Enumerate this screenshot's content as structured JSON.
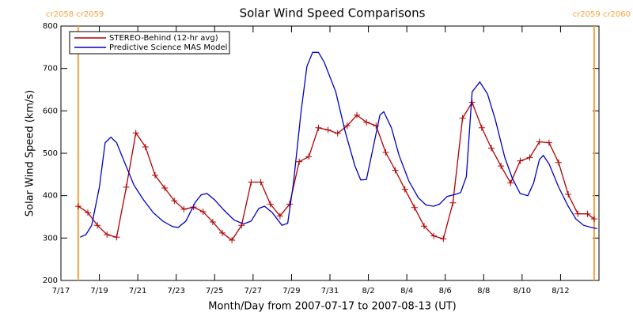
{
  "chart_data": {
    "type": "line",
    "title": "Solar Wind Speed Comparisons",
    "x_label": "Month/Day from 2007-07-17 to 2007-08-13 (UT)",
    "y_label": "Solar Wind Speed (km/s)",
    "xlim": [
      0,
      28
    ],
    "ylim": [
      200,
      800
    ],
    "xticks": [
      {
        "value": 0,
        "label": "7/17"
      },
      {
        "value": 2,
        "label": "7/19"
      },
      {
        "value": 4,
        "label": "7/21"
      },
      {
        "value": 6,
        "label": "7/23"
      },
      {
        "value": 8,
        "label": "7/25"
      },
      {
        "value": 10,
        "label": "7/27"
      },
      {
        "value": 12,
        "label": "7/29"
      },
      {
        "value": 14,
        "label": "7/31"
      },
      {
        "value": 16,
        "label": "8/2"
      },
      {
        "value": 18,
        "label": "8/4"
      },
      {
        "value": 20,
        "label": "8/6"
      },
      {
        "value": 22,
        "label": "8/8"
      },
      {
        "value": 24,
        "label": "8/10"
      },
      {
        "value": 26,
        "label": "8/12"
      }
    ],
    "yticks": [
      200,
      300,
      400,
      500,
      600,
      700,
      800
    ],
    "legend": "upper left",
    "markers": [
      {
        "x": 0.9,
        "label": "cr2058 cr2059",
        "color": "#f7a23a"
      },
      {
        "x": 27.75,
        "label": "cr2059 cr2060",
        "color": "#f7a23a"
      }
    ],
    "series": [
      {
        "name": "STEREO-Behind (12-hr avg)",
        "color": "#b00000",
        "marker": "+",
        "x": [
          0.9,
          1.4,
          1.9,
          2.4,
          2.9,
          3.4,
          3.9,
          4.4,
          4.9,
          5.4,
          5.9,
          6.4,
          6.9,
          7.4,
          7.9,
          8.4,
          8.9,
          9.4,
          9.9,
          10.4,
          10.9,
          11.4,
          11.9,
          12.4,
          12.9,
          13.4,
          13.9,
          14.4,
          14.9,
          15.4,
          15.9,
          16.4,
          16.9,
          17.4,
          17.9,
          18.4,
          18.9,
          19.4,
          19.9,
          20.4,
          20.9,
          21.4,
          21.9,
          22.4,
          22.9,
          23.4,
          23.9,
          24.4,
          24.9,
          25.4,
          25.9,
          26.4,
          26.9,
          27.4,
          27.75
        ],
        "values": [
          375,
          360,
          330,
          308,
          302,
          420,
          548,
          515,
          448,
          418,
          388,
          368,
          373,
          362,
          338,
          312,
          295,
          330,
          432,
          432,
          380,
          352,
          380,
          480,
          492,
          560,
          555,
          547,
          565,
          590,
          573,
          565,
          502,
          460,
          415,
          372,
          328,
          305,
          298,
          383,
          583,
          620,
          560,
          512,
          470,
          430,
          482,
          490,
          527,
          525,
          478,
          403,
          357,
          357,
          345
        ]
      },
      {
        "name": "Predictive Science MAS Model",
        "color": "#0000c8",
        "x": [
          1.0,
          1.3,
          1.6,
          2.0,
          2.3,
          2.6,
          2.9,
          3.3,
          3.8,
          4.3,
          4.8,
          5.3,
          5.8,
          6.1,
          6.5,
          7.0,
          7.3,
          7.6,
          8.0,
          8.5,
          9.0,
          9.5,
          9.9,
          10.3,
          10.6,
          11.0,
          11.5,
          11.8,
          12.1,
          12.5,
          12.8,
          13.1,
          13.4,
          13.7,
          14.3,
          14.8,
          15.3,
          15.6,
          15.9,
          16.3,
          16.6,
          16.8,
          17.2,
          17.6,
          18.1,
          18.6,
          19.0,
          19.4,
          19.7,
          20.1,
          20.5,
          20.8,
          21.1,
          21.4,
          21.8,
          22.2,
          22.6,
          23.1,
          23.5,
          23.9,
          24.3,
          24.6,
          24.9,
          25.1,
          25.4,
          25.9,
          26.4,
          26.8,
          27.2,
          27.6,
          27.9
        ],
        "values": [
          302,
          308,
          330,
          420,
          525,
          538,
          525,
          480,
          425,
          390,
          360,
          340,
          327,
          325,
          340,
          385,
          402,
          405,
          390,
          365,
          343,
          333,
          340,
          370,
          375,
          360,
          330,
          335,
          430,
          600,
          705,
          738,
          738,
          715,
          645,
          550,
          470,
          437,
          438,
          525,
          590,
          598,
          560,
          495,
          435,
          395,
          378,
          375,
          380,
          398,
          403,
          407,
          445,
          645,
          668,
          640,
          580,
          490,
          440,
          405,
          400,
          430,
          485,
          495,
          475,
          420,
          375,
          345,
          330,
          325,
          322
        ]
      }
    ]
  }
}
